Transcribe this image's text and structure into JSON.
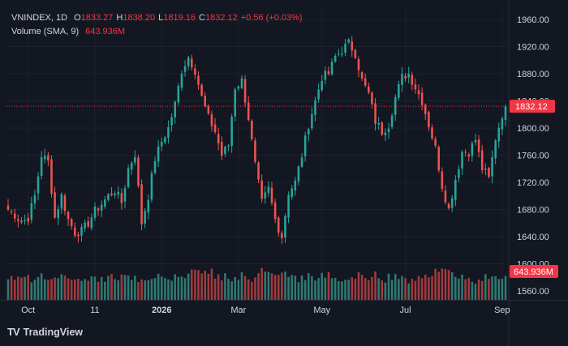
{
  "legend": {
    "symbol": "VNINDEX",
    "interval": "1D",
    "o_label": "O",
    "o_value": "1833.27",
    "h_label": "H",
    "h_value": "1838.20",
    "l_label": "L",
    "l_value": "1819.16",
    "c_label": "C",
    "c_value": "1832.12",
    "change": "+0.56 (+0.03%)",
    "volume_label": "Volume (SMA, 9)",
    "volume_value": "643.936M"
  },
  "branding": {
    "logo_mark": "TV",
    "logo_text": "TradingView"
  },
  "colors": {
    "up": "#26a69a",
    "down": "#ef5350",
    "up_volume": "#2f7a72",
    "down_volume": "#a23a3e",
    "background": "#131722",
    "grid": "#1e222d",
    "text": "#d1d4dc",
    "last_price": "#f23645"
  },
  "chart_data": {
    "type": "candlestick",
    "symbol": "VNINDEX",
    "interval": "1D",
    "y_ticks": [
      "1960.00",
      "1920.00",
      "1880.00",
      "1840.00",
      "1800.00",
      "1760.00",
      "1720.00",
      "1680.00",
      "1640.00",
      "1600.00",
      "1560.00"
    ],
    "ylim": [
      1544,
      1976
    ],
    "x_tick_labels": [
      "Oct",
      "11",
      "2026",
      "Mar",
      "May",
      "Jul",
      "Sep"
    ],
    "x_tick_bold": [
      false,
      false,
      true,
      false,
      false,
      false,
      false
    ],
    "last_price": 1832.12,
    "last_price_label": "1832.12",
    "volume_sma_label": "643.936M",
    "volume_sma": 643.936,
    "x_tick_index": [
      6,
      26,
      46,
      69,
      94,
      119,
      148
    ],
    "n_bars": 150,
    "anchors": [
      [
        0,
        1680
      ],
      [
        2,
        1672
      ],
      [
        4,
        1662
      ],
      [
        6,
        1668
      ],
      [
        8,
        1700
      ],
      [
        10,
        1760
      ],
      [
        12,
        1750
      ],
      [
        14,
        1668
      ],
      [
        16,
        1700
      ],
      [
        18,
        1665
      ],
      [
        20,
        1646
      ],
      [
        22,
        1648
      ],
      [
        24,
        1660
      ],
      [
        26,
        1678
      ],
      [
        28,
        1688
      ],
      [
        30,
        1700
      ],
      [
        32,
        1708
      ],
      [
        34,
        1690
      ],
      [
        36,
        1740
      ],
      [
        38,
        1762
      ],
      [
        40,
        1660
      ],
      [
        42,
        1700
      ],
      [
        44,
        1755
      ],
      [
        46,
        1780
      ],
      [
        48,
        1800
      ],
      [
        50,
        1835
      ],
      [
        52,
        1885
      ],
      [
        54,
        1905
      ],
      [
        56,
        1885
      ],
      [
        58,
        1845
      ],
      [
        60,
        1815
      ],
      [
        62,
        1795
      ],
      [
        64,
        1760
      ],
      [
        66,
        1775
      ],
      [
        68,
        1860
      ],
      [
        70,
        1870
      ],
      [
        72,
        1815
      ],
      [
        74,
        1745
      ],
      [
        76,
        1690
      ],
      [
        78,
        1710
      ],
      [
        80,
        1665
      ],
      [
        82,
        1640
      ],
      [
        84,
        1705
      ],
      [
        86,
        1720
      ],
      [
        88,
        1760
      ],
      [
        90,
        1805
      ],
      [
        92,
        1840
      ],
      [
        94,
        1875
      ],
      [
        96,
        1880
      ],
      [
        98,
        1905
      ],
      [
        100,
        1915
      ],
      [
        102,
        1925
      ],
      [
        104,
        1910
      ],
      [
        106,
        1870
      ],
      [
        108,
        1850
      ],
      [
        110,
        1810
      ],
      [
        112,
        1795
      ],
      [
        114,
        1805
      ],
      [
        116,
        1845
      ],
      [
        118,
        1875
      ],
      [
        120,
        1880
      ],
      [
        122,
        1860
      ],
      [
        124,
        1840
      ],
      [
        126,
        1805
      ],
      [
        128,
        1770
      ],
      [
        130,
        1715
      ],
      [
        132,
        1680
      ],
      [
        134,
        1725
      ],
      [
        136,
        1765
      ],
      [
        138,
        1765
      ],
      [
        140,
        1783
      ],
      [
        142,
        1740
      ],
      [
        144,
        1725
      ],
      [
        146,
        1785
      ],
      [
        148,
        1820
      ],
      [
        149,
        1832
      ]
    ],
    "volume_pattern": [
      520,
      610,
      560,
      640,
      590,
      700,
      660,
      540,
      620,
      580,
      710,
      650,
      600,
      560,
      680,
      630,
      720,
      610,
      590,
      560
    ],
    "volume_ylim": [
      0,
      1800
    ]
  }
}
